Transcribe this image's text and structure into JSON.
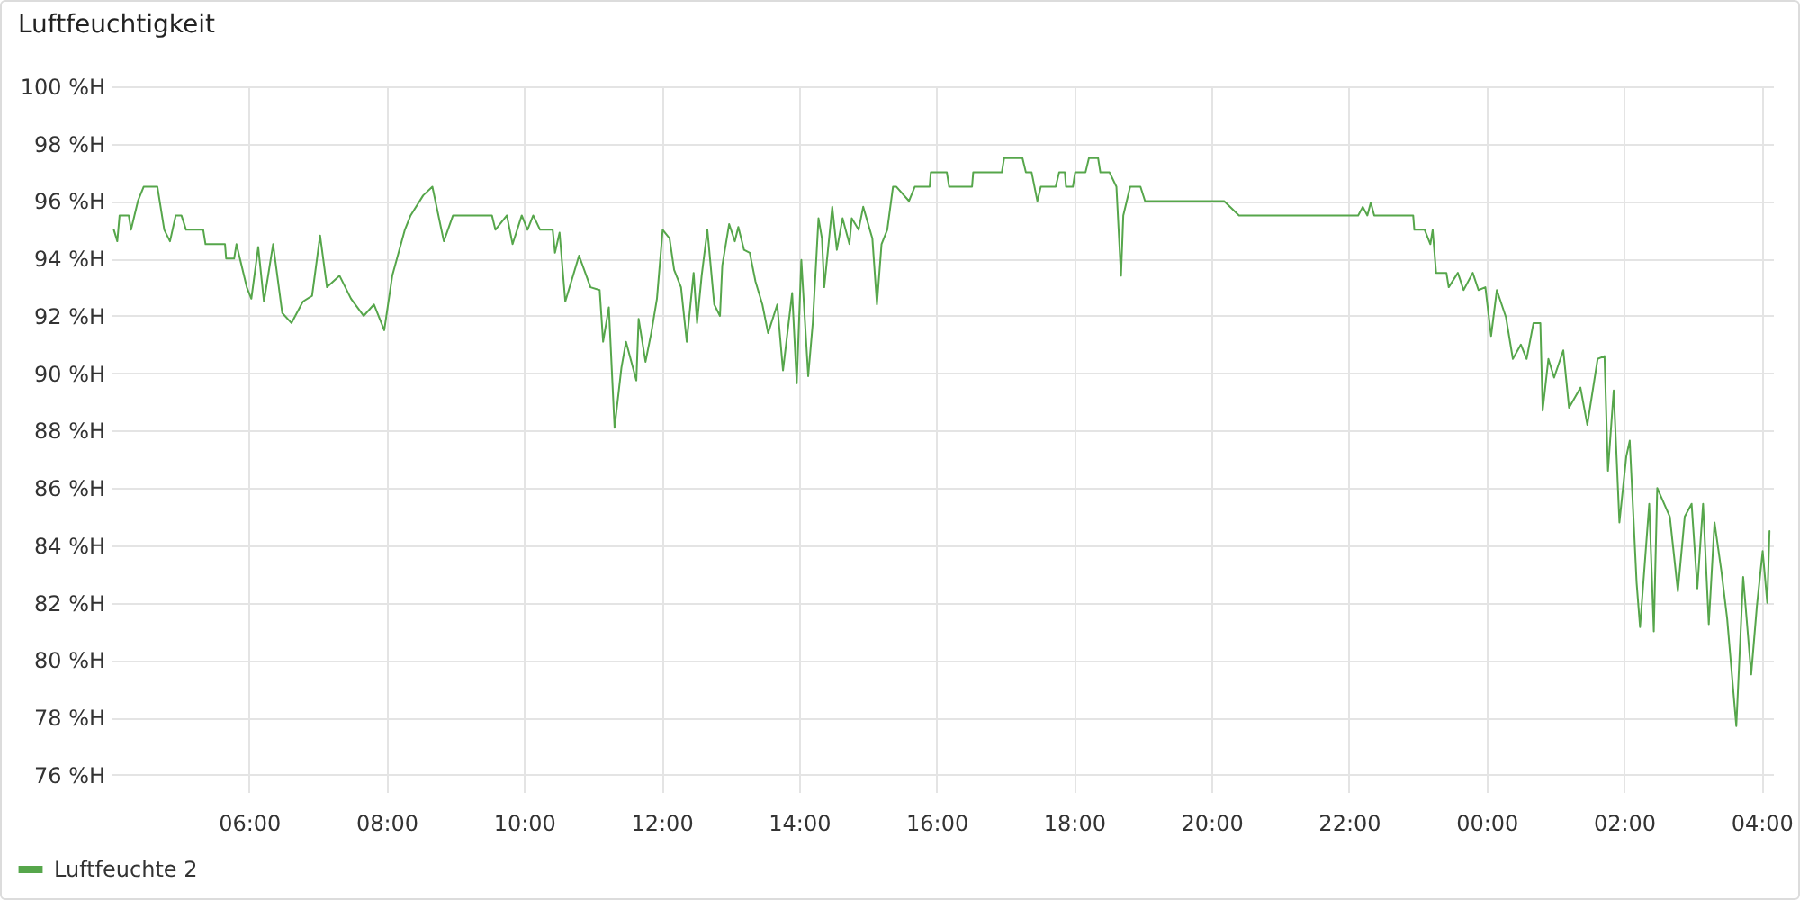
{
  "chart_data": {
    "type": "line",
    "title": "Luftfeuchtigkeit",
    "xlim": [
      "--01-01T04:00",
      "--01-02T04:10"
    ],
    "ylim": [
      75.4,
      100
    ],
    "xticks": [
      {
        "value": "--01-01T06:00",
        "label": "06:00"
      },
      {
        "value": "--01-01T08:00",
        "label": "08:00"
      },
      {
        "value": "--01-01T10:00",
        "label": "10:00"
      },
      {
        "value": "--01-01T12:00",
        "label": "12:00"
      },
      {
        "value": "--01-01T14:00",
        "label": "14:00"
      },
      {
        "value": "--01-01T16:00",
        "label": "16:00"
      },
      {
        "value": "--01-01T18:00",
        "label": "18:00"
      },
      {
        "value": "--01-01T20:00",
        "label": "20:00"
      },
      {
        "value": "--01-01T22:00",
        "label": "22:00"
      },
      {
        "value": "--01-02T00:00",
        "label": "00:00"
      },
      {
        "value": "--01-02T02:00",
        "label": "02:00"
      },
      {
        "value": "--01-02T04:00",
        "label": "04:00"
      }
    ],
    "yticks": [
      {
        "value": 76,
        "label": "76 %H"
      },
      {
        "value": 78,
        "label": "78 %H"
      },
      {
        "value": 80,
        "label": "80 %H"
      },
      {
        "value": 82,
        "label": "82 %H"
      },
      {
        "value": 84,
        "label": "84 %H"
      },
      {
        "value": 86,
        "label": "86 %H"
      },
      {
        "value": 88,
        "label": "88 %H"
      },
      {
        "value": 90,
        "label": "90 %H"
      },
      {
        "value": 92,
        "label": "92 %H"
      },
      {
        "value": 94,
        "label": "94 %H"
      },
      {
        "value": 96,
        "label": "96 %H"
      },
      {
        "value": 98,
        "label": "98 %H"
      },
      {
        "value": 100,
        "label": "100 %H"
      }
    ],
    "grid": true,
    "legend": "bottom left",
    "marker": "none",
    "line_style": "solid",
    "series": [
      {
        "name": "Luftfeuchte 2",
        "color": "#56a64b",
        "x": [
          "--01-01T04:02",
          "--01-01T04:05",
          "--01-01T04:07",
          "--01-01T04:15",
          "--01-01T04:17",
          "--01-01T04:23",
          "--01-01T04:28",
          "--01-01T04:40",
          "--01-01T04:46",
          "--01-01T04:51",
          "--01-01T04:56",
          "--01-01T05:01",
          "--01-01T05:05",
          "--01-01T05:20",
          "--01-01T05:22",
          "--01-01T05:39",
          "--01-01T05:40",
          "--01-01T05:47",
          "--01-01T05:49",
          "--01-01T05:58",
          "--01-01T06:02",
          "--01-01T06:08",
          "--01-01T06:13",
          "--01-01T06:21",
          "--01-01T06:29",
          "--01-01T06:37",
          "--01-01T06:47",
          "--01-01T06:55",
          "--01-01T07:02",
          "--01-01T07:08",
          "--01-01T07:19",
          "--01-01T07:29",
          "--01-01T07:40",
          "--01-01T07:49",
          "--01-01T07:58",
          "--01-01T08:05",
          "--01-01T08:16",
          "--01-01T08:21",
          "--01-01T08:32",
          "--01-01T08:40",
          "--01-01T08:50",
          "--01-01T08:58",
          "--01-01T09:32",
          "--01-01T09:35",
          "--01-01T09:45",
          "--01-01T09:50",
          "--01-01T09:58",
          "--01-01T10:03",
          "--01-01T10:08",
          "--01-01T10:14",
          "--01-01T10:25",
          "--01-01T10:27",
          "--01-01T10:31",
          "--01-01T10:36",
          "--01-01T10:48",
          "--01-01T10:58",
          "--01-01T11:06",
          "--01-01T11:09",
          "--01-01T11:14",
          "--01-01T11:19",
          "--01-01T11:25",
          "--01-01T11:29",
          "--01-01T11:38",
          "--01-01T11:40",
          "--01-01T11:46",
          "--01-01T11:51",
          "--01-01T11:56",
          "--01-01T12:01",
          "--01-01T12:07",
          "--01-01T12:11",
          "--01-01T12:17",
          "--01-01T12:22",
          "--01-01T12:28",
          "--01-01T12:31",
          "--01-01T12:35",
          "--01-01T12:40",
          "--01-01T12:46",
          "--01-01T12:51",
          "--01-01T12:53",
          "--01-01T12:59",
          "--01-01T13:04",
          "--01-01T13:07",
          "--01-01T13:12",
          "--01-01T13:17",
          "--01-01T13:22",
          "--01-01T13:28",
          "--01-01T13:33",
          "--01-01T13:41",
          "--01-01T13:46",
          "--01-01T13:54",
          "--01-01T13:58",
          "--01-01T14:02",
          "--01-01T14:08",
          "--01-01T14:12",
          "--01-01T14:17",
          "--01-01T14:20",
          "--01-01T14:22",
          "--01-01T14:29",
          "--01-01T14:33",
          "--01-01T14:38",
          "--01-01T14:44",
          "--01-01T14:46",
          "--01-01T14:52",
          "--01-01T14:56",
          "--01-01T15:04",
          "--01-01T15:08",
          "--01-01T15:12",
          "--01-01T15:17",
          "--01-01T15:22",
          "--01-01T15:25",
          "--01-01T15:36",
          "--01-01T15:41",
          "--01-01T15:54",
          "--01-01T15:55",
          "--01-01T16:09",
          "--01-01T16:11",
          "--01-01T16:31",
          "--01-01T16:32",
          "--01-01T16:57",
          "--01-01T16:59",
          "--01-01T17:15",
          "--01-01T17:18",
          "--01-01T17:23",
          "--01-01T17:28",
          "--01-01T17:31",
          "--01-01T17:44",
          "--01-01T17:47",
          "--01-01T17:52",
          "--01-01T17:53",
          "--01-01T17:59",
          "--01-01T18:01",
          "--01-01T18:10",
          "--01-01T18:13",
          "--01-01T18:21",
          "--01-01T18:23",
          "--01-01T18:31",
          "--01-01T18:37",
          "--01-01T18:41",
          "--01-01T18:43",
          "--01-01T18:49",
          "--01-01T18:58",
          "--01-01T19:02",
          "--01-01T20:11",
          "--01-01T20:24",
          "--01-01T22:08",
          "--01-01T22:12",
          "--01-01T22:16",
          "--01-01T22:19",
          "--01-01T22:22",
          "--01-01T22:56",
          "--01-01T22:57",
          "--01-01T23:06",
          "--01-01T23:11",
          "--01-01T23:13",
          "--01-01T23:16",
          "--01-01T23:25",
          "--01-01T23:27",
          "--01-01T23:35",
          "--01-01T23:40",
          "--01-01T23:48",
          "--01-01T23:53",
          "--01-01T23:59",
          "--01-02T00:04",
          "--01-02T00:09",
          "--01-02T00:17",
          "--01-02T00:23",
          "--01-02T00:30",
          "--01-02T00:35",
          "--01-02T00:41",
          "--01-02T00:47",
          "--01-02T00:49",
          "--01-02T00:54",
          "--01-02T00:59",
          "--01-02T01:07",
          "--01-02T01:12",
          "--01-02T01:22",
          "--01-02T01:28",
          "--01-02T01:37",
          "--01-02T01:43",
          "--01-02T01:46",
          "--01-02T01:51",
          "--01-02T01:56",
          "--01-02T02:02",
          "--01-02T02:05",
          "--01-02T02:11",
          "--01-02T02:14",
          "--01-02T02:22",
          "--01-02T02:26",
          "--01-02T02:29",
          "--01-02T02:40",
          "--01-02T02:47",
          "--01-02T02:53",
          "--01-02T02:59",
          "--01-02T03:04",
          "--01-02T03:09",
          "--01-02T03:14",
          "--01-02T03:19",
          "--01-02T03:25",
          "--01-02T03:30",
          "--01-02T03:38",
          "--01-02T03:44",
          "--01-02T03:51",
          "--01-02T03:56",
          "--01-02T04:01",
          "--01-02T04:05",
          "--01-02T04:07"
        ],
        "values": [
          95.0,
          94.6,
          95.5,
          95.5,
          95.0,
          96.0,
          96.5,
          96.5,
          95.0,
          94.6,
          95.5,
          95.5,
          95.0,
          95.0,
          94.5,
          94.5,
          94.0,
          94.0,
          94.5,
          93.0,
          92.6,
          94.4,
          92.5,
          94.5,
          92.1,
          91.75,
          92.5,
          92.7,
          94.8,
          93.0,
          93.4,
          92.6,
          92.0,
          92.4,
          91.5,
          93.4,
          95.0,
          95.5,
          96.2,
          96.5,
          94.6,
          95.5,
          95.5,
          95.0,
          95.5,
          94.5,
          95.5,
          95.0,
          95.5,
          95.0,
          95.0,
          94.2,
          94.9,
          92.5,
          94.1,
          93.0,
          92.9,
          91.1,
          92.3,
          88.1,
          90.2,
          91.1,
          89.75,
          91.9,
          90.4,
          91.4,
          92.6,
          95.0,
          94.7,
          93.6,
          93.0,
          91.1,
          93.5,
          91.75,
          93.4,
          95.0,
          92.4,
          92.0,
          93.75,
          95.2,
          94.6,
          95.1,
          94.3,
          94.2,
          93.2,
          92.4,
          91.4,
          92.4,
          90.1,
          92.8,
          89.65,
          93.95,
          89.9,
          91.75,
          95.4,
          94.7,
          93.0,
          95.8,
          94.3,
          95.4,
          94.5,
          95.4,
          95.0,
          95.8,
          94.7,
          92.4,
          94.5,
          95.0,
          96.5,
          96.5,
          96.0,
          96.5,
          96.5,
          97.0,
          97.0,
          96.5,
          96.5,
          97.0,
          97.0,
          97.5,
          97.5,
          97.0,
          97.0,
          96.0,
          96.5,
          96.5,
          97.0,
          97.0,
          96.5,
          96.5,
          97.0,
          97.0,
          97.5,
          97.5,
          97.0,
          97.0,
          96.5,
          93.4,
          95.5,
          96.5,
          96.5,
          96.0,
          96.0,
          95.5,
          95.5,
          95.8,
          95.5,
          95.95,
          95.5,
          95.5,
          95.0,
          95.0,
          94.5,
          95.0,
          93.5,
          93.5,
          93.0,
          93.5,
          92.9,
          93.5,
          92.9,
          93.0,
          91.3,
          92.9,
          91.95,
          90.5,
          91.0,
          90.5,
          91.75,
          91.75,
          88.7,
          90.5,
          89.85,
          90.8,
          88.8,
          89.5,
          88.2,
          90.5,
          90.6,
          86.6,
          89.4,
          84.8,
          87.1,
          87.65,
          82.7,
          81.15,
          85.45,
          81.0,
          86.0,
          85.0,
          82.4,
          85.0,
          85.45,
          82.5,
          85.45,
          81.25,
          84.8,
          83.1,
          81.45,
          77.7,
          82.9,
          79.5,
          81.9,
          83.8,
          82.0,
          84.5
        ]
      }
    ]
  }
}
